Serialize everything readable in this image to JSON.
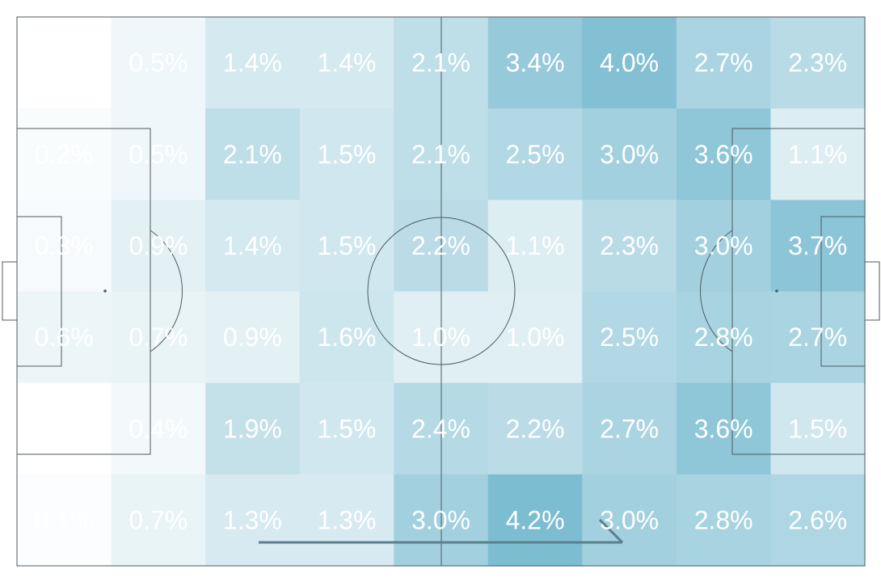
{
  "chart_data": {
    "type": "heatmap",
    "title": "",
    "xlabel": "",
    "ylabel": "",
    "columns": 9,
    "rows": 6,
    "grid": false,
    "legend": "none",
    "colors": {
      "base": "#ffffff",
      "high": "#4aa3c0",
      "text": "#ffffff",
      "lines": "#4d5a60",
      "arrow": "#5b7f8c"
    },
    "values": [
      [
        0.0,
        0.5,
        1.4,
        1.4,
        2.1,
        3.4,
        4.0,
        2.7,
        2.3
      ],
      [
        0.2,
        0.5,
        2.1,
        1.5,
        2.1,
        2.5,
        3.0,
        3.6,
        1.1
      ],
      [
        0.3,
        0.9,
        1.4,
        1.5,
        2.2,
        1.1,
        2.3,
        3.0,
        3.7
      ],
      [
        0.6,
        0.7,
        0.9,
        1.6,
        1.0,
        1.0,
        2.5,
        2.8,
        2.7
      ],
      [
        0.0,
        0.4,
        1.9,
        1.5,
        2.4,
        2.2,
        2.7,
        3.6,
        1.5
      ],
      [
        0.1,
        0.7,
        1.3,
        1.3,
        3.0,
        4.2,
        3.0,
        2.8,
        2.6
      ]
    ],
    "labels": [
      [
        "",
        "0.5%",
        "1.4%",
        "1.4%",
        "2.1%",
        "3.4%",
        "4.0%",
        "2.7%",
        "2.3%"
      ],
      [
        "0.2%",
        "0.5%",
        "2.1%",
        "1.5%",
        "2.1%",
        "2.5%",
        "3.0%",
        "3.6%",
        "1.1%"
      ],
      [
        "0.3%",
        "0.9%",
        "1.4%",
        "1.5%",
        "2.2%",
        "1.1%",
        "2.3%",
        "3.0%",
        "3.7%"
      ],
      [
        "0.6%",
        "0.7%",
        "0.9%",
        "1.6%",
        "1.0%",
        "1.0%",
        "2.5%",
        "2.8%",
        "2.7%"
      ],
      [
        "",
        "0.4%",
        "1.9%",
        "1.5%",
        "2.4%",
        "2.2%",
        "2.7%",
        "3.6%",
        "1.5%"
      ],
      [
        "0.1%",
        "0.7%",
        "1.3%",
        "1.3%",
        "3.0%",
        "4.2%",
        "3.0%",
        "2.8%",
        "2.6%"
      ]
    ],
    "max_value": 4.2
  }
}
